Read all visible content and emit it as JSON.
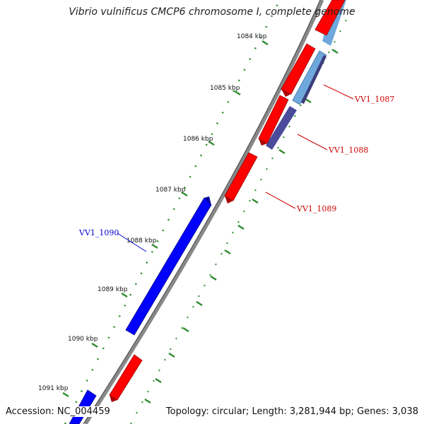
{
  "title": "Vibrio vulnificus CMCP6 chromosome I, complete genome",
  "footer": {
    "accession": "Accession: NC_004459",
    "topology": "Topology: circular; Length: 3,281,944 bp; Genes: 3,038"
  },
  "kbp_labels": [
    "1084 kbp",
    "1085 kbp",
    "1086 kbp",
    "1087 kbp",
    "1088 kbp",
    "1089 kbp",
    "1090 kbp",
    "1091 kbp"
  ],
  "genes": [
    {
      "label": "VV1_1087",
      "strand": "forward",
      "color": "#cc0000"
    },
    {
      "label": "VV1_1088",
      "strand": "forward",
      "color": "#cc0000"
    },
    {
      "label": "VV1_1089",
      "strand": "forward",
      "color": "#cc0000"
    },
    {
      "label": "VV1_1090",
      "strand": "reverse",
      "color": "#0000cc"
    }
  ],
  "colors": {
    "backbone": "#888888",
    "tick": "#2e8b2e",
    "forward_gene": "#ff0000",
    "reverse_gene": "#0000ff",
    "cds_light": "#6fa8dc",
    "cds_dark": "#4b4b9b"
  }
}
